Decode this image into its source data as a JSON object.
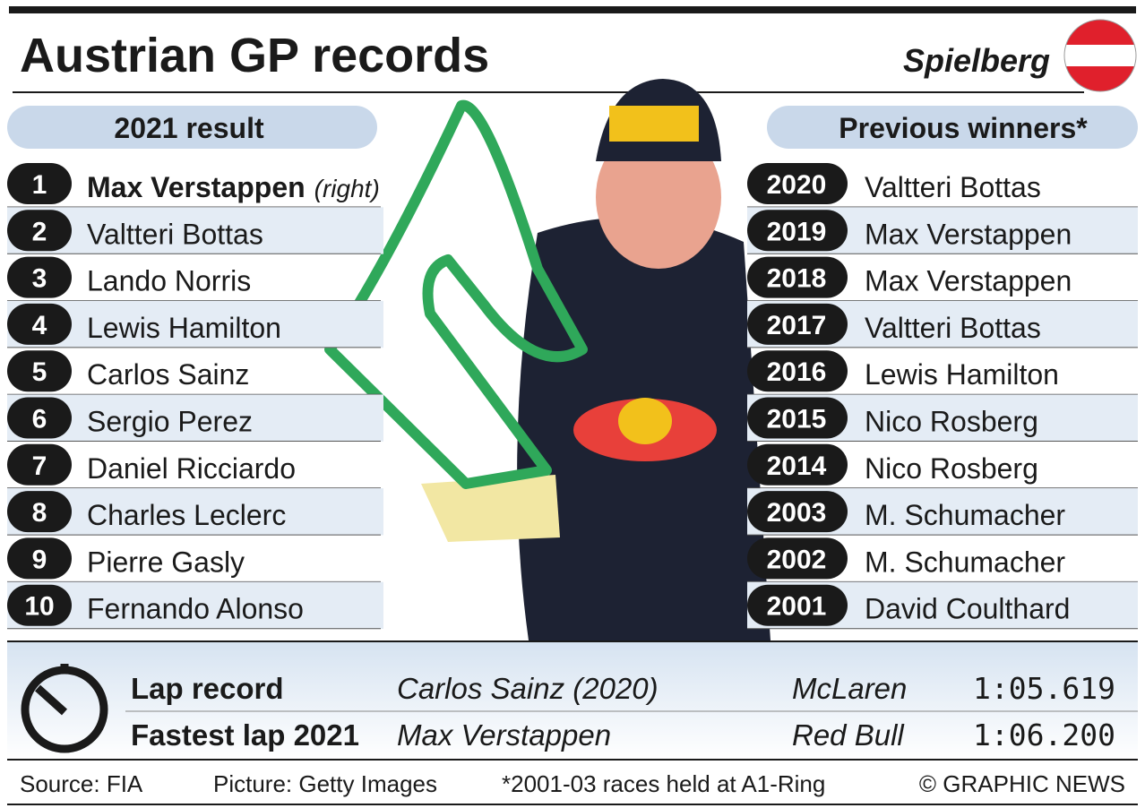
{
  "header": {
    "title": "Austrian GP records",
    "location": "Spielberg"
  },
  "results": {
    "title": "2021 result",
    "rows": [
      {
        "position": 1,
        "name": "Max Verstappen",
        "note": "(right)"
      },
      {
        "position": 2,
        "name": "Valtteri Bottas"
      },
      {
        "position": 3,
        "name": "Lando Norris"
      },
      {
        "position": 4,
        "name": "Lewis Hamilton"
      },
      {
        "position": 5,
        "name": "Carlos Sainz"
      },
      {
        "position": 6,
        "name": "Sergio Perez"
      },
      {
        "position": 7,
        "name": "Daniel Ricciardo"
      },
      {
        "position": 8,
        "name": "Charles Leclerc"
      },
      {
        "position": 9,
        "name": "Pierre Gasly"
      },
      {
        "position": 10,
        "name": "Fernando Alonso"
      }
    ]
  },
  "winners": {
    "title": "Previous winners*",
    "rows": [
      {
        "year": 2020,
        "name": "Valtteri Bottas"
      },
      {
        "year": 2019,
        "name": "Max Verstappen"
      },
      {
        "year": 2018,
        "name": "Max Verstappen"
      },
      {
        "year": 2017,
        "name": "Valtteri Bottas"
      },
      {
        "year": 2016,
        "name": "Lewis Hamilton"
      },
      {
        "year": 2015,
        "name": "Nico Rosberg"
      },
      {
        "year": 2014,
        "name": "Nico Rosberg"
      },
      {
        "year": 2003,
        "name": "M. Schumacher"
      },
      {
        "year": 2002,
        "name": "M. Schumacher"
      },
      {
        "year": 2001,
        "name": "David Coulthard"
      }
    ]
  },
  "laps": {
    "rows": [
      {
        "label": "Lap record",
        "driver": "Carlos Sainz (2020)",
        "team": "McLaren",
        "time": "1:05.619"
      },
      {
        "label": "Fastest lap 2021",
        "driver": "Max Verstappen",
        "team": "Red Bull",
        "time": "1:06.200"
      }
    ]
  },
  "footer": {
    "source": "Source: FIA",
    "picture": "Picture: Getty Images",
    "note": "*2001-03 races held at A1-Ring",
    "copyright": "© GRAPHIC NEWS"
  }
}
